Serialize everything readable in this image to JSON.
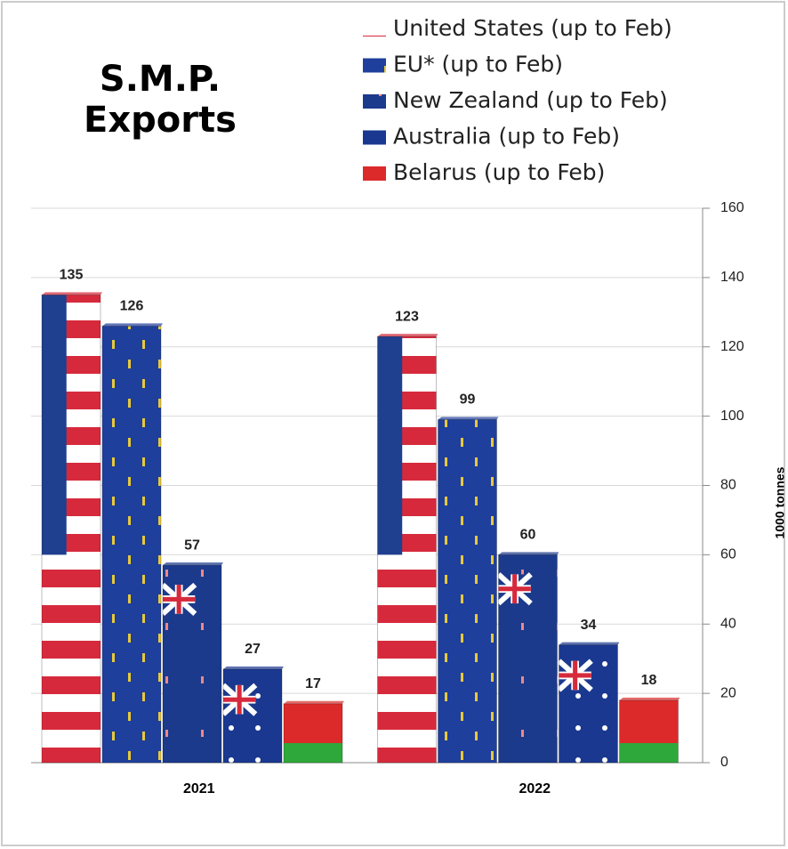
{
  "chart_data": {
    "type": "bar",
    "title": "S.M.P.\nExports",
    "categories": [
      "2021",
      "2022"
    ],
    "series": [
      {
        "name": "United States (up to Feb)",
        "color": "#d62a3c",
        "values": [
          135,
          123
        ]
      },
      {
        "name": "EU* (up to Feb)",
        "color": "#1f3f9c",
        "values": [
          126,
          99
        ]
      },
      {
        "name": "New Zealand (up to Feb)",
        "color": "#1c3a8c",
        "values": [
          57,
          60
        ]
      },
      {
        "name": "Australia (up to Feb)",
        "color": "#1a3890",
        "values": [
          27,
          34
        ]
      },
      {
        "name": "Belarus (up to Feb)",
        "color": "#dc2a2a",
        "values": [
          17,
          18
        ]
      }
    ],
    "y_axis_label": "1000 tonnes",
    "ylim": [
      0,
      160
    ],
    "yticks": [
      0,
      20,
      40,
      60,
      80,
      100,
      120,
      140,
      160
    ],
    "grid": true,
    "legend": "top-right"
  }
}
